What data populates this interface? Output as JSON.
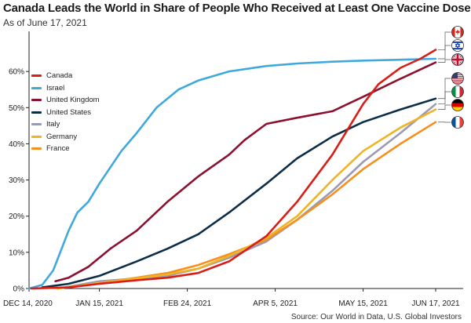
{
  "chart_data": {
    "type": "line",
    "title": "Canada Leads the World in Share of People Who Received at Least One Vaccine Dose",
    "subtitle": "As of June 17, 2021",
    "source": "Source: Our World in Data, U.S. Global Investors",
    "xlabel": "",
    "ylabel": "",
    "x_ticks": [
      "DEC 14, 2020",
      "JAN 15, 2021",
      "FEB 24, 2021",
      "APR 5, 2021",
      "MAY 15, 2021",
      "JUN 17, 2021"
    ],
    "x_tick_dates": [
      "2020-12-14",
      "2021-01-15",
      "2021-02-24",
      "2021-04-05",
      "2021-05-15",
      "2021-06-17"
    ],
    "y_ticks": [
      "0%",
      "10%",
      "20%",
      "30%",
      "40%",
      "50%",
      "60%"
    ],
    "y_tick_values": [
      0,
      10,
      20,
      30,
      40,
      50,
      60
    ],
    "ylim": [
      0,
      70
    ],
    "xlim": [
      "2020-12-14",
      "2021-06-17"
    ],
    "grid": false,
    "legend_position": "top-left",
    "series": [
      {
        "name": "Canada",
        "color": "#d91e18",
        "flag": "canada-flag-icon",
        "points": [
          [
            "2020-12-15",
            0
          ],
          [
            "2021-01-01",
            0.3
          ],
          [
            "2021-01-15",
            1.3
          ],
          [
            "2021-02-01",
            2.3
          ],
          [
            "2021-02-15",
            3.0
          ],
          [
            "2021-03-01",
            4.3
          ],
          [
            "2021-03-15",
            7.5
          ],
          [
            "2021-04-01",
            14.5
          ],
          [
            "2021-04-15",
            24
          ],
          [
            "2021-05-01",
            37
          ],
          [
            "2021-05-15",
            51
          ],
          [
            "2021-05-22",
            56.5
          ],
          [
            "2021-06-01",
            61
          ],
          [
            "2021-06-10",
            63.5
          ],
          [
            "2021-06-17",
            66
          ]
        ]
      },
      {
        "name": "Israel",
        "color": "#3fa9db",
        "flag": "israel-flag-icon",
        "points": [
          [
            "2020-12-14",
            0
          ],
          [
            "2020-12-20",
            1
          ],
          [
            "2020-12-25",
            5
          ],
          [
            "2021-01-01",
            16
          ],
          [
            "2021-01-05",
            21
          ],
          [
            "2021-01-10",
            24
          ],
          [
            "2021-01-15",
            29
          ],
          [
            "2021-01-25",
            38
          ],
          [
            "2021-02-01",
            43
          ],
          [
            "2021-02-10",
            50
          ],
          [
            "2021-02-20",
            55
          ],
          [
            "2021-03-01",
            57.5
          ],
          [
            "2021-03-15",
            60
          ],
          [
            "2021-04-01",
            61.5
          ],
          [
            "2021-04-15",
            62.2
          ],
          [
            "2021-05-01",
            62.7
          ],
          [
            "2021-05-15",
            63
          ],
          [
            "2021-06-17",
            63.5
          ]
        ]
      },
      {
        "name": "United Kingdom",
        "color": "#8c1131",
        "flag": "uk-flag-icon",
        "points": [
          [
            "2020-12-26",
            2
          ],
          [
            "2021-01-01",
            3
          ],
          [
            "2021-01-10",
            6
          ],
          [
            "2021-01-20",
            11
          ],
          [
            "2021-02-01",
            16
          ],
          [
            "2021-02-15",
            24
          ],
          [
            "2021-03-01",
            31
          ],
          [
            "2021-03-15",
            37
          ],
          [
            "2021-03-22",
            41
          ],
          [
            "2021-04-01",
            45.5
          ],
          [
            "2021-04-15",
            47.2
          ],
          [
            "2021-05-01",
            49
          ],
          [
            "2021-05-15",
            53
          ],
          [
            "2021-06-01",
            58
          ],
          [
            "2021-06-17",
            62.5
          ]
        ]
      },
      {
        "name": "United States",
        "color": "#0c2d48",
        "flag": "us-flag-icon",
        "points": [
          [
            "2020-12-20",
            0.3
          ],
          [
            "2021-01-01",
            1.3
          ],
          [
            "2021-01-15",
            3.5
          ],
          [
            "2021-02-01",
            7.5
          ],
          [
            "2021-02-15",
            11
          ],
          [
            "2021-03-01",
            15
          ],
          [
            "2021-03-15",
            21
          ],
          [
            "2021-04-01",
            29
          ],
          [
            "2021-04-15",
            36
          ],
          [
            "2021-05-01",
            42
          ],
          [
            "2021-05-15",
            46
          ],
          [
            "2021-06-01",
            49.5
          ],
          [
            "2021-06-17",
            52.5
          ]
        ]
      },
      {
        "name": "Italy",
        "color": "#9a9ab4",
        "flag": "italy-flag-icon",
        "points": [
          [
            "2020-12-27",
            0
          ],
          [
            "2021-01-15",
            2
          ],
          [
            "2021-02-01",
            2.8
          ],
          [
            "2021-02-15",
            3.5
          ],
          [
            "2021-03-01",
            5.5
          ],
          [
            "2021-03-15",
            8.5
          ],
          [
            "2021-04-01",
            13
          ],
          [
            "2021-04-15",
            19
          ],
          [
            "2021-05-01",
            27
          ],
          [
            "2021-05-15",
            35
          ],
          [
            "2021-06-01",
            43
          ],
          [
            "2021-06-17",
            51
          ]
        ]
      },
      {
        "name": "Germany",
        "color": "#f0b323",
        "flag": "germany-flag-icon",
        "points": [
          [
            "2020-12-27",
            0
          ],
          [
            "2021-01-15",
            1.5
          ],
          [
            "2021-02-01",
            2.8
          ],
          [
            "2021-02-15",
            3.9
          ],
          [
            "2021-03-01",
            5.5
          ],
          [
            "2021-03-15",
            9
          ],
          [
            "2021-04-01",
            14
          ],
          [
            "2021-04-15",
            20
          ],
          [
            "2021-05-01",
            30
          ],
          [
            "2021-05-15",
            38
          ],
          [
            "2021-06-01",
            44.5
          ],
          [
            "2021-06-17",
            49.5
          ]
        ]
      },
      {
        "name": "France",
        "color": "#f5901e",
        "flag": "france-flag-icon",
        "points": [
          [
            "2020-12-27",
            0
          ],
          [
            "2021-01-15",
            1.5
          ],
          [
            "2021-02-01",
            3.0
          ],
          [
            "2021-02-15",
            4.3
          ],
          [
            "2021-03-01",
            6.5
          ],
          [
            "2021-03-15",
            9.5
          ],
          [
            "2021-04-01",
            13.5
          ],
          [
            "2021-04-15",
            19
          ],
          [
            "2021-05-01",
            26
          ],
          [
            "2021-05-15",
            33
          ],
          [
            "2021-06-01",
            40
          ],
          [
            "2021-06-17",
            46
          ]
        ]
      }
    ]
  }
}
